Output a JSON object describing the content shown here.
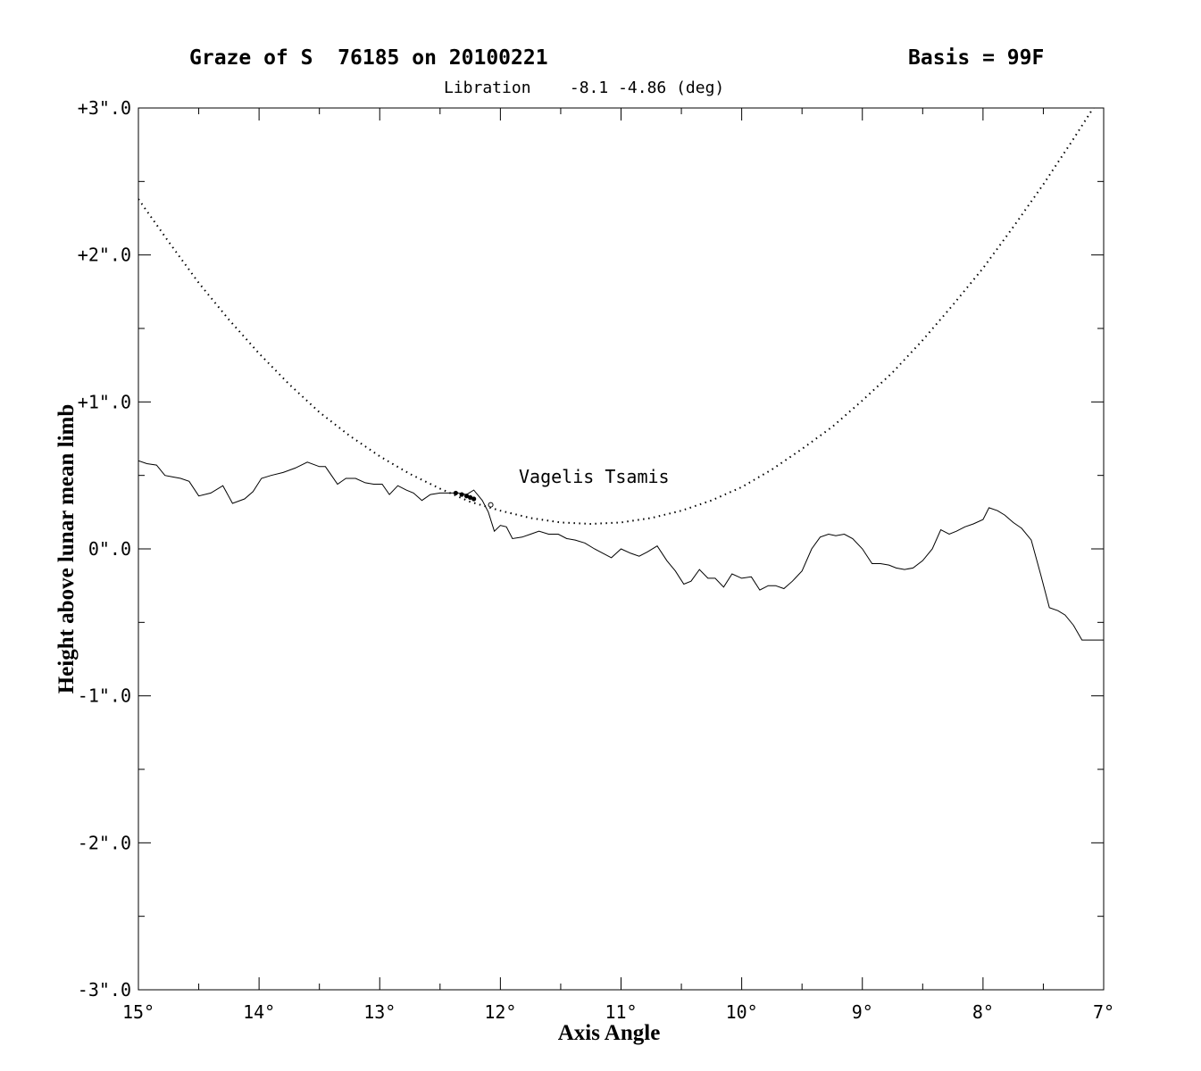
{
  "chart_data": {
    "type": "line",
    "title": "Graze of S  76185 on 20100221",
    "basis": "Basis = 99F",
    "subtitle": "Libration    -8.1 -4.86 (deg)",
    "annotation": "Vagelis Tsamis",
    "xlabel": "Axis Angle",
    "ylabel": "Height above lunar mean limb",
    "xlim": [
      15,
      7
    ],
    "ylim": [
      -3,
      3
    ],
    "x_ticks": [
      {
        "value": 15,
        "label": "15°"
      },
      {
        "value": 14,
        "label": "14°"
      },
      {
        "value": 13,
        "label": "13°"
      },
      {
        "value": 12,
        "label": "12°"
      },
      {
        "value": 11,
        "label": "11°"
      },
      {
        "value": 10,
        "label": "10°"
      },
      {
        "value": 9,
        "label": "9°"
      },
      {
        "value": 8,
        "label": "8°"
      },
      {
        "value": 7,
        "label": "7°"
      }
    ],
    "y_ticks": [
      {
        "value": 3,
        "label": "+3\".0"
      },
      {
        "value": 2,
        "label": "+2\".0"
      },
      {
        "value": 1,
        "label": "+1\".0"
      },
      {
        "value": 0,
        "label": "0\".0"
      },
      {
        "value": -1,
        "label": "-1\".0"
      },
      {
        "value": -2,
        "label": "-2\".0"
      },
      {
        "value": -3,
        "label": "-3\".0"
      }
    ],
    "series": [
      {
        "style": "solid",
        "x": [
          15.0,
          14.93,
          14.85,
          14.78,
          14.72,
          14.65,
          14.58,
          14.5,
          14.4,
          14.3,
          14.22,
          14.12,
          14.05,
          13.98,
          13.9,
          13.8,
          13.7,
          13.6,
          13.5,
          13.45,
          13.35,
          13.28,
          13.2,
          13.12,
          13.05,
          12.98,
          12.92,
          12.85,
          12.78,
          12.72,
          12.65,
          12.58,
          12.5,
          12.42,
          12.35,
          12.28,
          12.22,
          12.15,
          12.1,
          12.05,
          12.0,
          11.95,
          11.9,
          11.82,
          11.75,
          11.68,
          11.6,
          11.52,
          11.45,
          11.38,
          11.3,
          11.22,
          11.15,
          11.08,
          11.0,
          10.92,
          10.85,
          10.78,
          10.7,
          10.62,
          10.55,
          10.48,
          10.42,
          10.35,
          10.28,
          10.22,
          10.15,
          10.08,
          10.0,
          9.92,
          9.85,
          9.78,
          9.72,
          9.65,
          9.58,
          9.5,
          9.42,
          9.35,
          9.28,
          9.22,
          9.15,
          9.08,
          9.0,
          8.92,
          8.85,
          8.78,
          8.72,
          8.65,
          8.58,
          8.5,
          8.42,
          8.35,
          8.28,
          8.22,
          8.15,
          8.08,
          8.0,
          7.95,
          7.88,
          7.82,
          7.75,
          7.68,
          7.6,
          7.52,
          7.45,
          7.38,
          7.32,
          7.25,
          7.18,
          7.12,
          7.05,
          7.0
        ],
        "y": [
          0.6,
          0.58,
          0.57,
          0.5,
          0.49,
          0.48,
          0.46,
          0.36,
          0.38,
          0.43,
          0.31,
          0.34,
          0.39,
          0.48,
          0.5,
          0.52,
          0.55,
          0.59,
          0.56,
          0.56,
          0.44,
          0.48,
          0.48,
          0.45,
          0.44,
          0.44,
          0.37,
          0.43,
          0.4,
          0.38,
          0.33,
          0.37,
          0.38,
          0.38,
          0.38,
          0.37,
          0.4,
          0.33,
          0.25,
          0.12,
          0.16,
          0.15,
          0.07,
          0.08,
          0.1,
          0.12,
          0.1,
          0.1,
          0.07,
          0.06,
          0.04,
          0.0,
          -0.03,
          -0.06,
          0.0,
          -0.03,
          -0.05,
          -0.02,
          0.02,
          -0.08,
          -0.15,
          -0.24,
          -0.22,
          -0.14,
          -0.2,
          -0.2,
          -0.26,
          -0.17,
          -0.2,
          -0.19,
          -0.28,
          -0.25,
          -0.25,
          -0.27,
          -0.22,
          -0.15,
          0.0,
          0.08,
          0.1,
          0.09,
          0.1,
          0.07,
          0.0,
          -0.1,
          -0.1,
          -0.11,
          -0.13,
          -0.14,
          -0.13,
          -0.08,
          0.0,
          0.13,
          0.1,
          0.12,
          0.15,
          0.17,
          0.2,
          0.28,
          0.26,
          0.23,
          0.18,
          0.14,
          0.06,
          -0.18,
          -0.4,
          -0.42,
          -0.45,
          -0.52,
          -0.62,
          -0.62,
          -0.62,
          -0.62
        ]
      },
      {
        "style": "dotted",
        "x": [
          15.0,
          14.75,
          14.5,
          14.25,
          14.0,
          13.75,
          13.5,
          13.25,
          13.0,
          12.75,
          12.5,
          12.25,
          12.0,
          11.75,
          11.5,
          11.25,
          11.0,
          10.75,
          10.5,
          10.25,
          10.0,
          9.75,
          9.5,
          9.25,
          9.0,
          8.75,
          8.5,
          8.25,
          8.0,
          7.75,
          7.5,
          7.25,
          7.0
        ],
        "y": [
          2.38,
          2.09,
          1.81,
          1.56,
          1.33,
          1.12,
          0.93,
          0.77,
          0.63,
          0.51,
          0.41,
          0.32,
          0.26,
          0.21,
          0.18,
          0.17,
          0.18,
          0.21,
          0.26,
          0.33,
          0.42,
          0.54,
          0.68,
          0.83,
          1.01,
          1.2,
          1.42,
          1.66,
          1.91,
          2.19,
          2.48,
          2.79,
          3.11
        ]
      }
    ],
    "events": [
      {
        "type": "disappearance",
        "x": 12.37,
        "y": 0.38
      },
      {
        "type": "disappearance",
        "x": 12.32,
        "y": 0.37
      },
      {
        "type": "disappearance",
        "x": 12.28,
        "y": 0.36
      },
      {
        "type": "disappearance",
        "x": 12.25,
        "y": 0.35
      },
      {
        "type": "disappearance",
        "x": 12.22,
        "y": 0.34
      },
      {
        "type": "reappearance",
        "x": 12.08,
        "y": 0.3
      }
    ]
  }
}
